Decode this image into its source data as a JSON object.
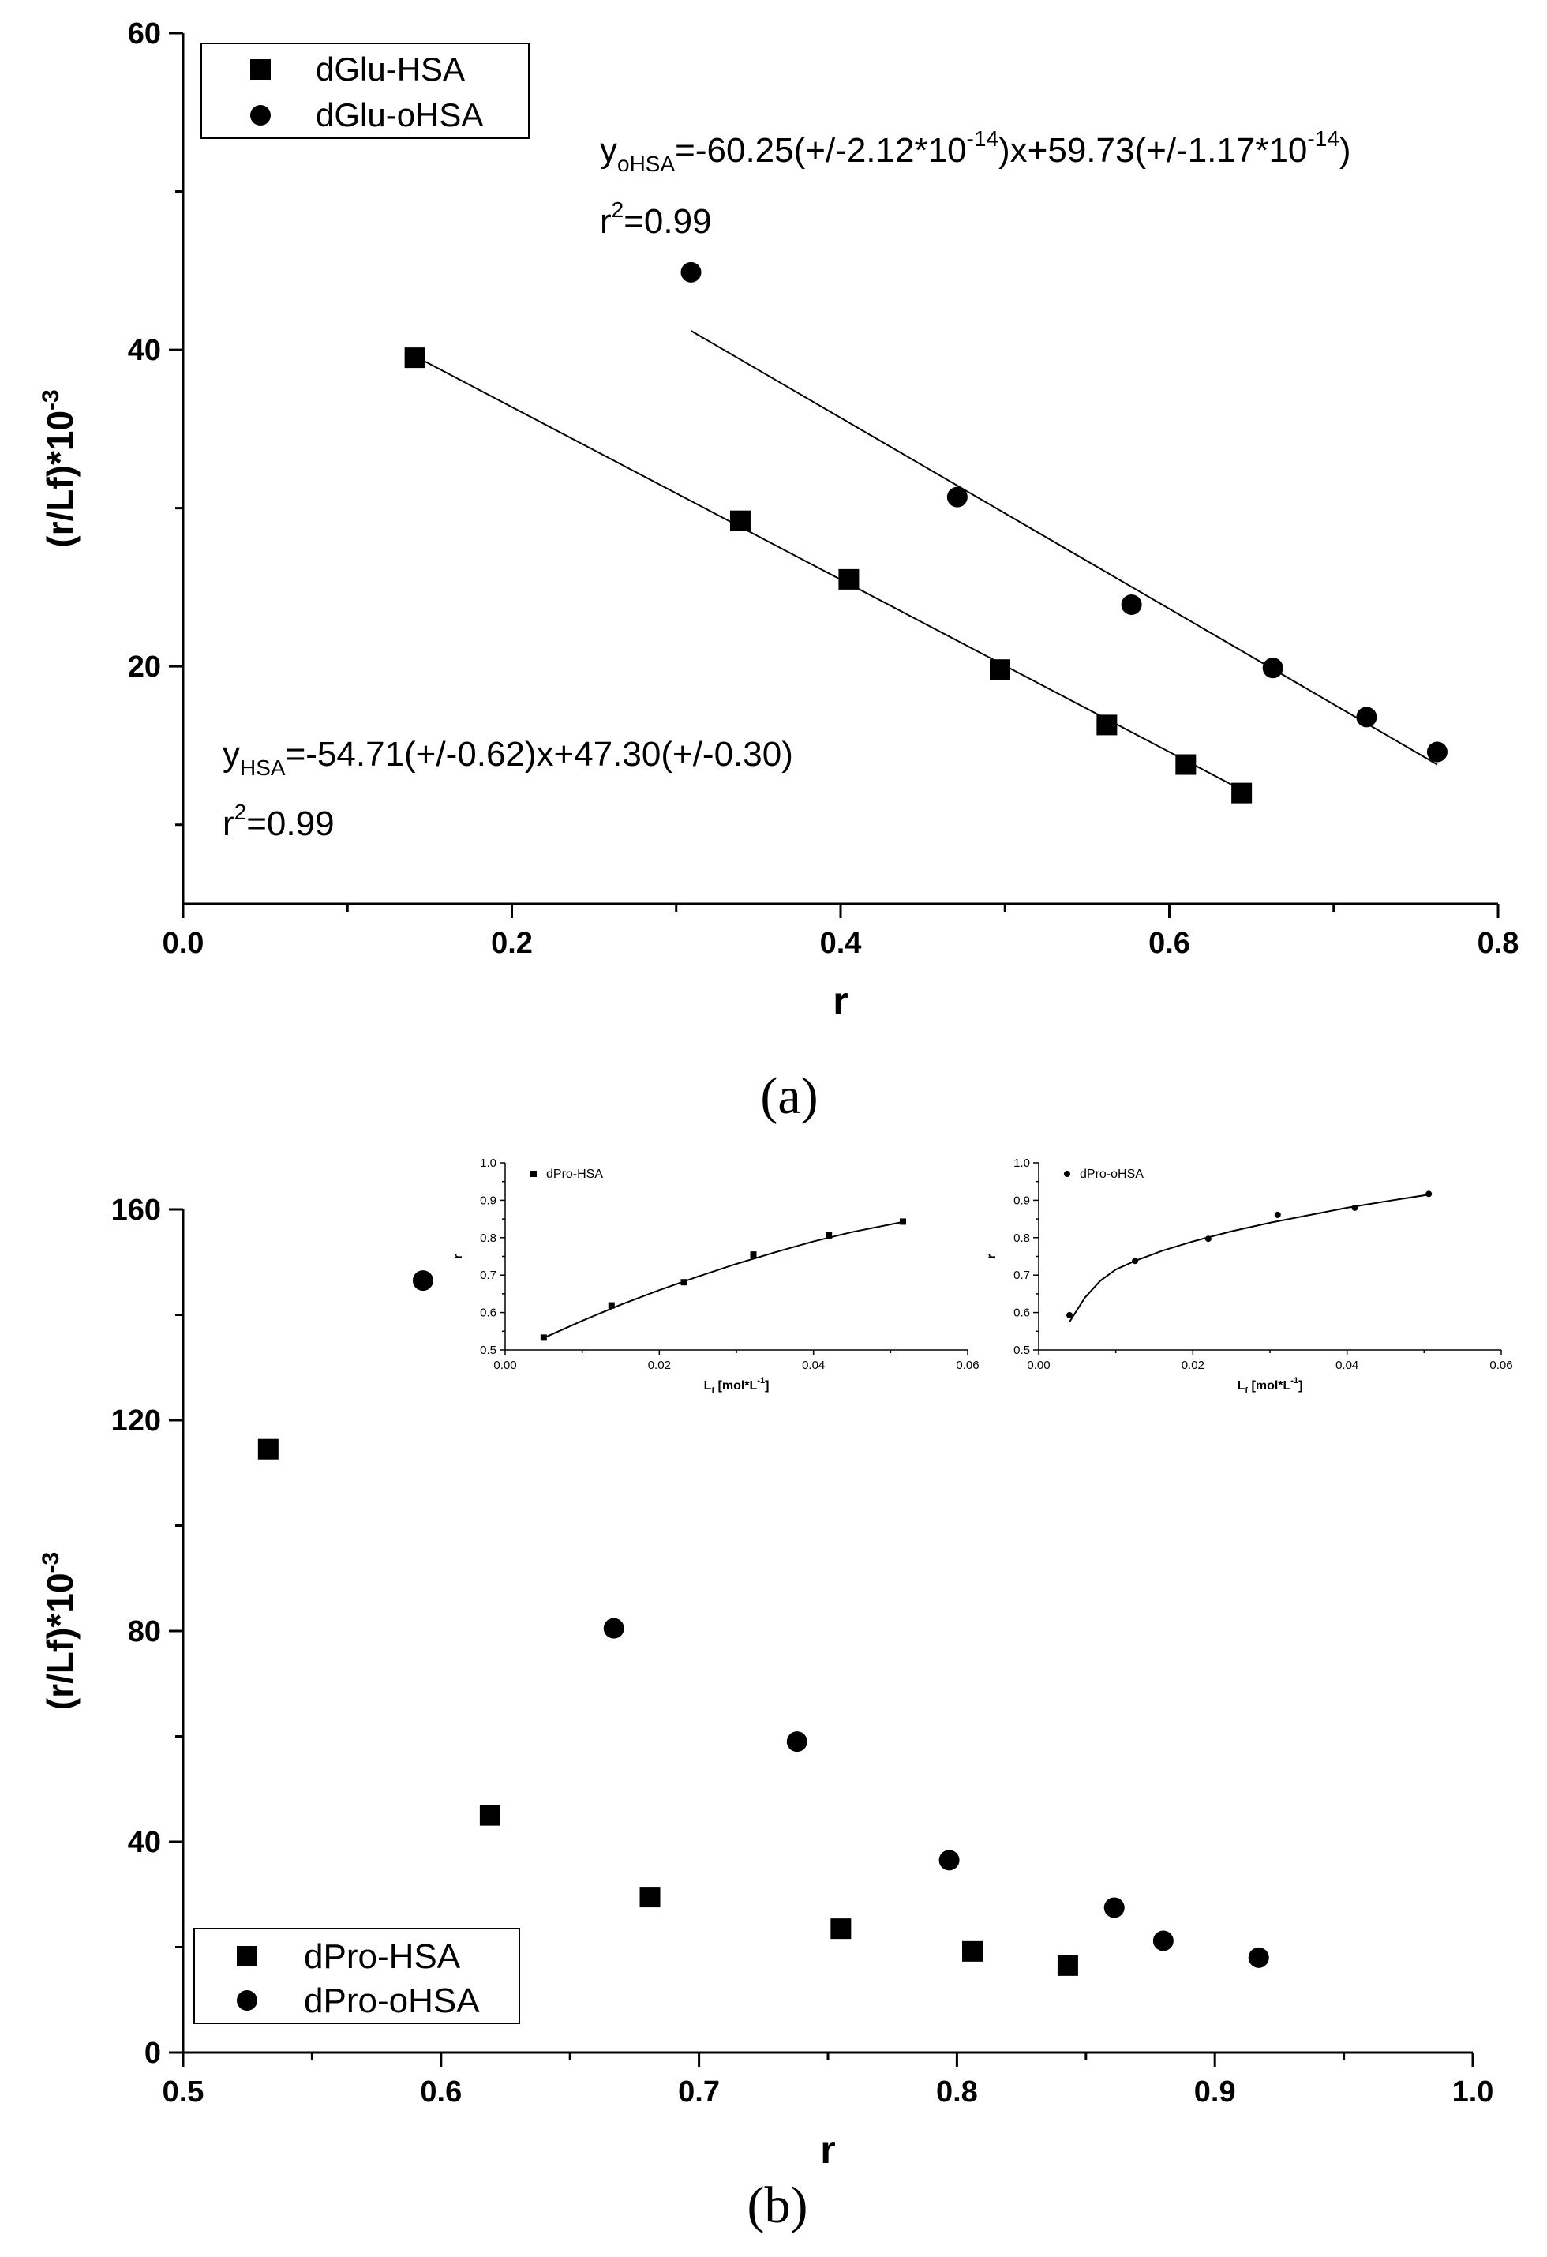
{
  "chart_data": [
    {
      "id": "a",
      "type": "scatter",
      "panel_label": "(a)",
      "xlabel": "r",
      "ylabel_base": "(r/Lf)*10",
      "ylabel_exp": "-3",
      "xlim": [
        0.0,
        0.8
      ],
      "ylim": [
        5,
        60
      ],
      "xticks": [
        0.0,
        0.2,
        0.4,
        0.6,
        0.8
      ],
      "xtick_labels": [
        "0.0",
        "0.2",
        "0.4",
        "0.6",
        "0.8"
      ],
      "yticks": [
        20,
        40,
        60
      ],
      "ytick_labels": [
        "20",
        "40",
        "60"
      ],
      "legend": {
        "placement": "top-left",
        "entries": [
          "dGlu-HSA",
          "dGlu-oHSA"
        ]
      },
      "series": [
        {
          "name": "dGlu-HSA",
          "marker": "square",
          "x": [
            0.141,
            0.339,
            0.405,
            0.497,
            0.562,
            0.61,
            0.644
          ],
          "y": [
            39.5,
            29.2,
            25.5,
            19.8,
            16.3,
            13.8,
            12.0
          ],
          "fit": {
            "x": [
              0.141,
              0.644
            ],
            "y": [
              39.6,
              12.2
            ]
          }
        },
        {
          "name": "dGlu-oHSA",
          "marker": "circle",
          "x": [
            0.309,
            0.471,
            0.577,
            0.663,
            0.72,
            0.763
          ],
          "y": [
            44.9,
            30.7,
            23.9,
            19.9,
            16.8,
            14.6
          ],
          "fit": {
            "x": [
              0.309,
              0.763
            ],
            "y": [
              41.2,
              13.8
            ]
          }
        }
      ],
      "annotations": {
        "ohsa_eq": {
          "y_prefix": "y",
          "sub": "oHSA",
          "part1": "=-60.25(+/-2.12*10",
          "exp1": "-14",
          "part2": ")x+59.73(+/-1.17*10",
          "exp2": "-14",
          "part3": ")"
        },
        "ohsa_r2": {
          "base": "r",
          "exp": "2",
          "rest": "=0.99"
        },
        "hsa_eq": {
          "y_prefix": "y",
          "sub": "HSA",
          "text": "=-54.71(+/-0.62)x+47.30(+/-0.30)"
        },
        "hsa_r2": {
          "base": "r",
          "exp": "2",
          "rest": "=0.99"
        }
      }
    },
    {
      "id": "b",
      "type": "scatter",
      "panel_label": "(b)",
      "xlabel": "r",
      "ylabel_base": "(r/Lf)*10",
      "ylabel_exp": "-3",
      "xlim": [
        0.5,
        1.0
      ],
      "ylim": [
        0,
        160
      ],
      "xticks": [
        0.5,
        0.6,
        0.7,
        0.8,
        0.9,
        1.0
      ],
      "xtick_labels": [
        "0.5",
        "0.6",
        "0.7",
        "0.8",
        "0.9",
        "1.0"
      ],
      "yticks": [
        0,
        40,
        80,
        120,
        160
      ],
      "ytick_labels": [
        "0",
        "40",
        "80",
        "120",
        "160"
      ],
      "legend": {
        "placement": "bottom-left",
        "entries": [
          "dPro-HSA",
          "dPro-oHSA"
        ]
      },
      "series": [
        {
          "name": "dPro-HSA",
          "marker": "square",
          "x": [
            0.533,
            0.619,
            0.681,
            0.755,
            0.806,
            0.843
          ],
          "y": [
            114.5,
            45.0,
            29.5,
            23.5,
            19.2,
            16.5
          ]
        },
        {
          "name": "dPro-oHSA",
          "marker": "circle",
          "x": [
            0.593,
            0.667,
            0.738,
            0.797,
            0.861,
            0.88,
            0.917
          ],
          "y": [
            146.5,
            80.5,
            59.0,
            36.5,
            27.5,
            21.2,
            18.0
          ]
        }
      ],
      "insets": [
        {
          "id": "b1",
          "type": "line",
          "legend": "dPro-HSA",
          "marker": "square",
          "xlabel_base": "L",
          "xlabel_sub": "f",
          "xlabel_rest": " [mol*L",
          "xlabel_exp": "-1",
          "xlabel_end": "]",
          "ylabel": "r",
          "xlim": [
            0.0,
            0.06
          ],
          "ylim": [
            0.5,
            1.0
          ],
          "xticks": [
            0.0,
            0.02,
            0.04,
            0.06
          ],
          "xtick_labels": [
            "0.00",
            "0.02",
            "0.04",
            "0.06"
          ],
          "yticks": [
            0.5,
            0.6,
            0.7,
            0.8,
            0.9,
            1.0
          ],
          "ytick_labels": [
            "0.5",
            "0.6",
            "0.7",
            "0.8",
            "0.9",
            "1.0"
          ],
          "x": [
            0.005,
            0.0138,
            0.0232,
            0.0322,
            0.042,
            0.0516
          ],
          "y": [
            0.533,
            0.619,
            0.681,
            0.755,
            0.806,
            0.843
          ],
          "fit_curve": {
            "x": [
              0.005,
              0.01,
              0.015,
              0.02,
              0.025,
              0.03,
              0.035,
              0.04,
              0.045,
              0.0516
            ],
            "y": [
              0.532,
              0.578,
              0.621,
              0.66,
              0.696,
              0.73,
              0.761,
              0.79,
              0.815,
              0.842
            ]
          }
        },
        {
          "id": "b2",
          "type": "line",
          "legend": "dPro-oHSA",
          "marker": "circle",
          "xlabel_base": "L",
          "xlabel_sub": "f",
          "xlabel_rest": " [mol*L",
          "xlabel_exp": "-1",
          "xlabel_end": "]",
          "ylabel": "r",
          "xlim": [
            0.0,
            0.06
          ],
          "ylim": [
            0.5,
            1.0
          ],
          "xticks": [
            0.0,
            0.02,
            0.04,
            0.06
          ],
          "xtick_labels": [
            "0.00",
            "0.02",
            "0.04",
            "0.06"
          ],
          "yticks": [
            0.5,
            0.6,
            0.7,
            0.8,
            0.9,
            1.0
          ],
          "ytick_labels": [
            "0.5",
            "0.6",
            "0.7",
            "0.8",
            "0.9",
            "1.0"
          ],
          "x": [
            0.004,
            0.0125,
            0.022,
            0.031,
            0.041,
            0.0506
          ],
          "y": [
            0.593,
            0.738,
            0.797,
            0.861,
            0.88,
            0.917
          ],
          "fit_curve": {
            "x": [
              0.004,
              0.006,
              0.008,
              0.01,
              0.0125,
              0.016,
              0.02,
              0.025,
              0.03,
              0.035,
              0.04,
              0.045,
              0.0506
            ],
            "y": [
              0.575,
              0.64,
              0.685,
              0.715,
              0.738,
              0.765,
              0.79,
              0.817,
              0.84,
              0.86,
              0.88,
              0.897,
              0.915
            ]
          }
        }
      ]
    }
  ]
}
